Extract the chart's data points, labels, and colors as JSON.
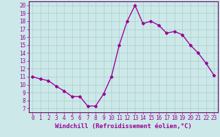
{
  "x": [
    0,
    1,
    2,
    3,
    4,
    5,
    6,
    7,
    8,
    9,
    10,
    11,
    12,
    13,
    14,
    15,
    16,
    17,
    18,
    19,
    20,
    21,
    22,
    23
  ],
  "y": [
    11.0,
    10.7,
    10.5,
    9.8,
    9.2,
    8.5,
    8.5,
    7.3,
    7.3,
    8.8,
    11.0,
    15.0,
    18.0,
    20.0,
    17.7,
    18.0,
    17.5,
    16.5,
    16.7,
    16.3,
    15.0,
    14.0,
    12.7,
    11.2
  ],
  "line_color": "#990099",
  "marker": "D",
  "marker_size": 2,
  "linewidth": 1.0,
  "xlabel": "Windchill (Refroidissement éolien,°C)",
  "xlabel_fontsize": 6.5,
  "xticks": [
    0,
    1,
    2,
    3,
    4,
    5,
    6,
    7,
    8,
    9,
    10,
    11,
    12,
    13,
    14,
    15,
    16,
    17,
    18,
    19,
    20,
    21,
    22,
    23
  ],
  "yticks": [
    7,
    8,
    9,
    10,
    11,
    12,
    13,
    14,
    15,
    16,
    17,
    18,
    19,
    20
  ],
  "xlim": [
    -0.5,
    23.5
  ],
  "ylim": [
    6.5,
    20.5
  ],
  "background_color": "#cce8e8",
  "grid_color": "#aacccc",
  "tick_fontsize": 5.5,
  "spine_color": "#660066"
}
